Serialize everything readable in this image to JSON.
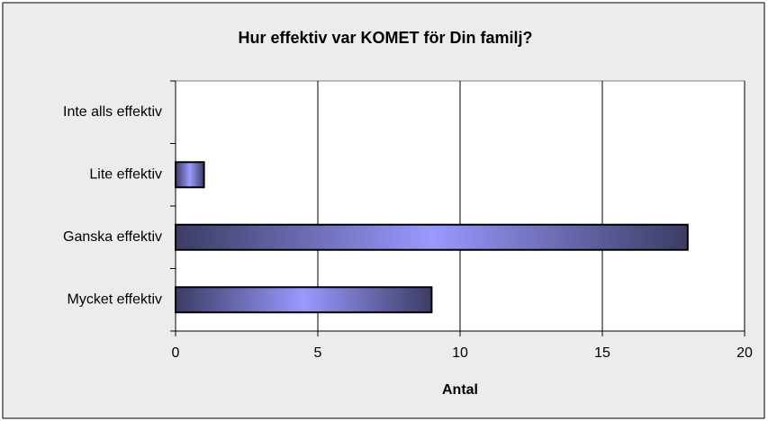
{
  "chart_data": {
    "type": "barh",
    "title": "Hur effektiv var KOMET för Din familj?",
    "categories": [
      "Inte alls effektiv",
      "Lite effektiv",
      "Ganska effektiv",
      "Mycket effektiv"
    ],
    "values": [
      0,
      1,
      18,
      9
    ],
    "color": "#9999ff",
    "xlabel": "Antal",
    "xlim": [
      0,
      20
    ],
    "xticks": [
      0,
      5,
      10,
      15,
      20
    ],
    "grid": true
  }
}
